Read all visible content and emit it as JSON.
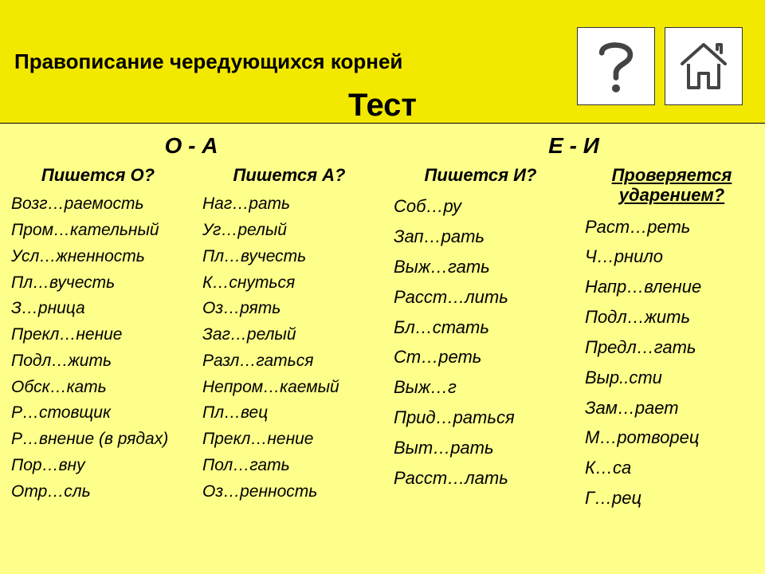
{
  "colors": {
    "top_band": "#f2e800",
    "body_bg": "#feff8a",
    "text": "#000000",
    "icon_bg": "#ffffff",
    "icon_border": "#333333"
  },
  "header": {
    "subtitle": "Правописание чередующихся корней",
    "title": "Тест"
  },
  "left": {
    "title": "О - А",
    "colA": {
      "head": "Пишется О?",
      "words": [
        "Возг…раемость",
        "Пром…кательный",
        "Усл…жненность",
        "Пл…вучесть",
        "З…рница",
        "Прекл…нение",
        "Подл…жить",
        "Обск…кать",
        "Р…стовщик",
        "Р…внение (в рядах)",
        "Пор…вну",
        "Отр…сль"
      ]
    },
    "colB": {
      "head": "Пишется А?",
      "words": [
        "Наг…рать",
        "Уг…релый",
        "Пл…вучесть",
        "К…снуться",
        "Оз…рять",
        "Заг…релый",
        "Разл…гаться",
        "Непром…каемый",
        "Пл…вец",
        "Прекл…нение",
        "Пол…гать",
        "Оз…ренность"
      ]
    }
  },
  "right": {
    "title": "Е - И",
    "colA": {
      "head": "Пишется И?",
      "words": [
        "Соб…ру",
        "Зап…рать",
        "Выж…гать",
        "Расст…лить",
        "Бл…стать",
        "Ст…реть",
        "Выж…г",
        "Прид…раться",
        "Выт…рать",
        "Расст…лать"
      ]
    },
    "colB": {
      "head": "Проверяется ударением?",
      "words": [
        "Раст…реть",
        "Ч…рнило",
        "Напр…вление",
        "Подл…жить",
        "Предл…гать",
        "Выр..сти",
        "Зам…рает",
        "М…ротворец",
        "К…са",
        "Г…рец"
      ]
    }
  }
}
